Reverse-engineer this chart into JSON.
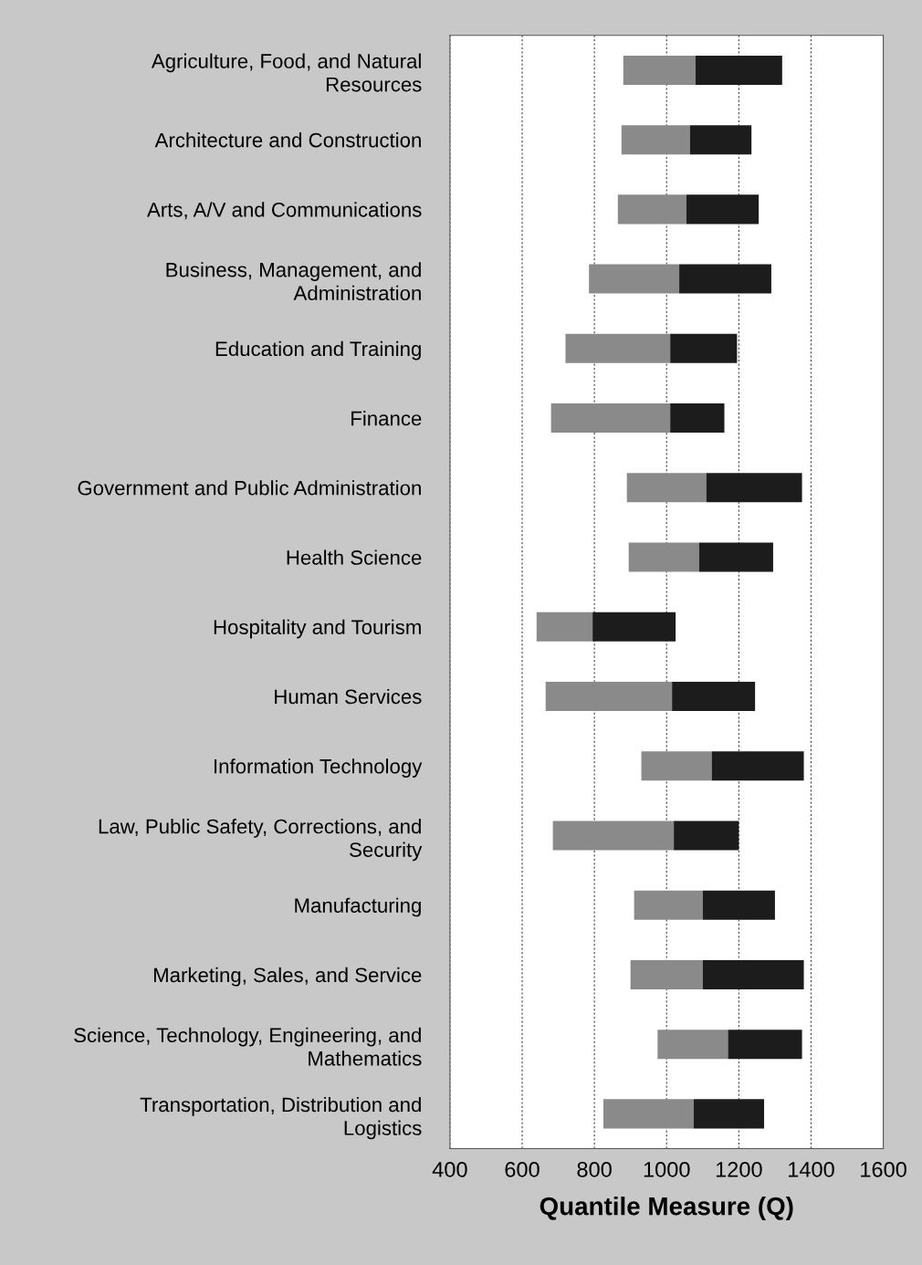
{
  "chart_data": {
    "type": "bar",
    "orientation": "horizontal",
    "xlabel": "Quantile Measure (Q)",
    "categories": [
      "Agriculture, Food, and Natural\nResources",
      "Architecture and Construction",
      "Arts, A/V and Communications",
      "Business, Management, and\nAdministration",
      "Education and Training",
      "Finance",
      "Government and Public Administration",
      "Health Science",
      "Hospitality and Tourism",
      "Human Services",
      "Information Technology",
      "Law, Public Safety, Corrections, and\nSecurity",
      "Manufacturing",
      "Marketing, Sales, and Service",
      "Science, Technology, Engineering, and\nMathematics",
      "Transportation, Distribution and\nLogistics"
    ],
    "series": [
      {
        "color": "#8a8a8a",
        "base": [
          880,
          875,
          865,
          785,
          720,
          680,
          890,
          895,
          640,
          665,
          930,
          685,
          910,
          900,
          975,
          825
        ],
        "values": [
          200,
          190,
          190,
          250,
          290,
          330,
          220,
          195,
          155,
          350,
          195,
          335,
          190,
          200,
          195,
          250
        ]
      },
      {
        "color": "#1c1c1c",
        "base": [
          1080,
          1065,
          1055,
          1035,
          1010,
          1010,
          1110,
          1090,
          795,
          1015,
          1125,
          1020,
          1100,
          1100,
          1170,
          1075
        ],
        "values": [
          240,
          170,
          200,
          255,
          185,
          150,
          265,
          205,
          230,
          230,
          255,
          180,
          200,
          280,
          205,
          195
        ]
      }
    ],
    "xlim": [
      400,
      1600
    ],
    "xticks": [
      400,
      600,
      800,
      1000,
      1200,
      1400,
      1600
    ],
    "grid": "x",
    "legend": false
  }
}
